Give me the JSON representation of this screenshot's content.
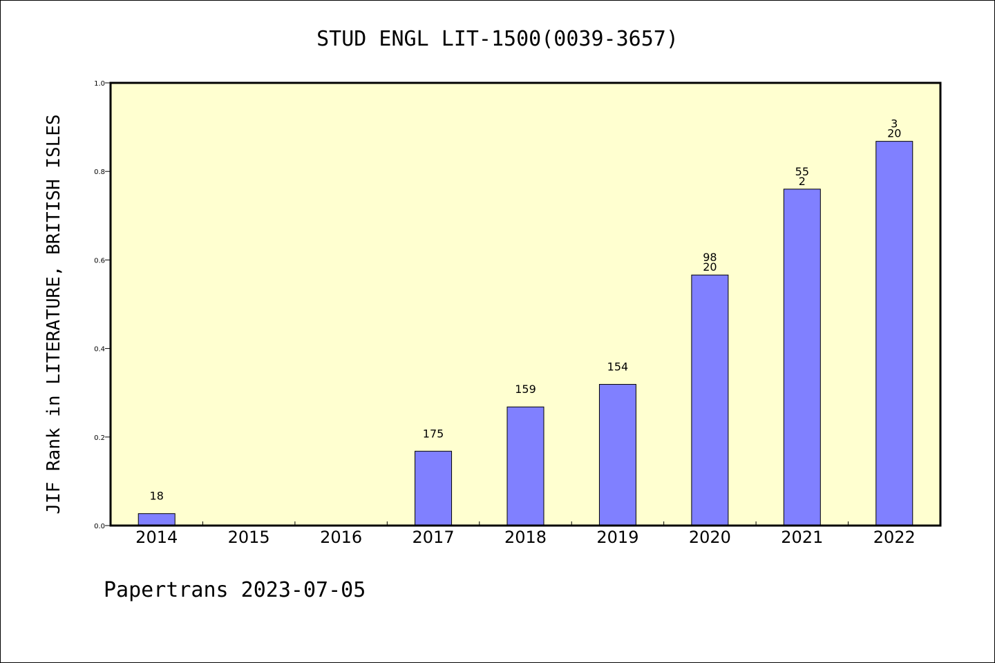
{
  "chart_data": {
    "type": "bar",
    "title": "STUD ENGL LIT-1500(0039-3657)",
    "ylabel": "JIF Rank in LITERATURE, BRITISH ISLES",
    "xlabel": "",
    "categories": [
      "2014",
      "2015",
      "2016",
      "2017",
      "2018",
      "2019",
      "2020",
      "2021",
      "2022"
    ],
    "values": [
      0.027,
      0,
      0,
      0.168,
      0.268,
      0.319,
      0.566,
      0.76,
      0.868
    ],
    "data_labels": [
      [
        "18"
      ],
      [],
      [],
      [
        "175"
      ],
      [
        "159"
      ],
      [
        "154"
      ],
      [
        "98",
        "20"
      ],
      [
        "55",
        "2"
      ],
      [
        "3",
        "20"
      ]
    ],
    "ylim": [
      0,
      1.0
    ],
    "yticks": [
      "0.0",
      "0.2",
      "0.4",
      "0.6",
      "0.8",
      "1.0"
    ],
    "grid": false,
    "bar_color": "#8080ff",
    "plot_background": "#ffffd0"
  },
  "footer": "Papertrans 2023-07-05"
}
